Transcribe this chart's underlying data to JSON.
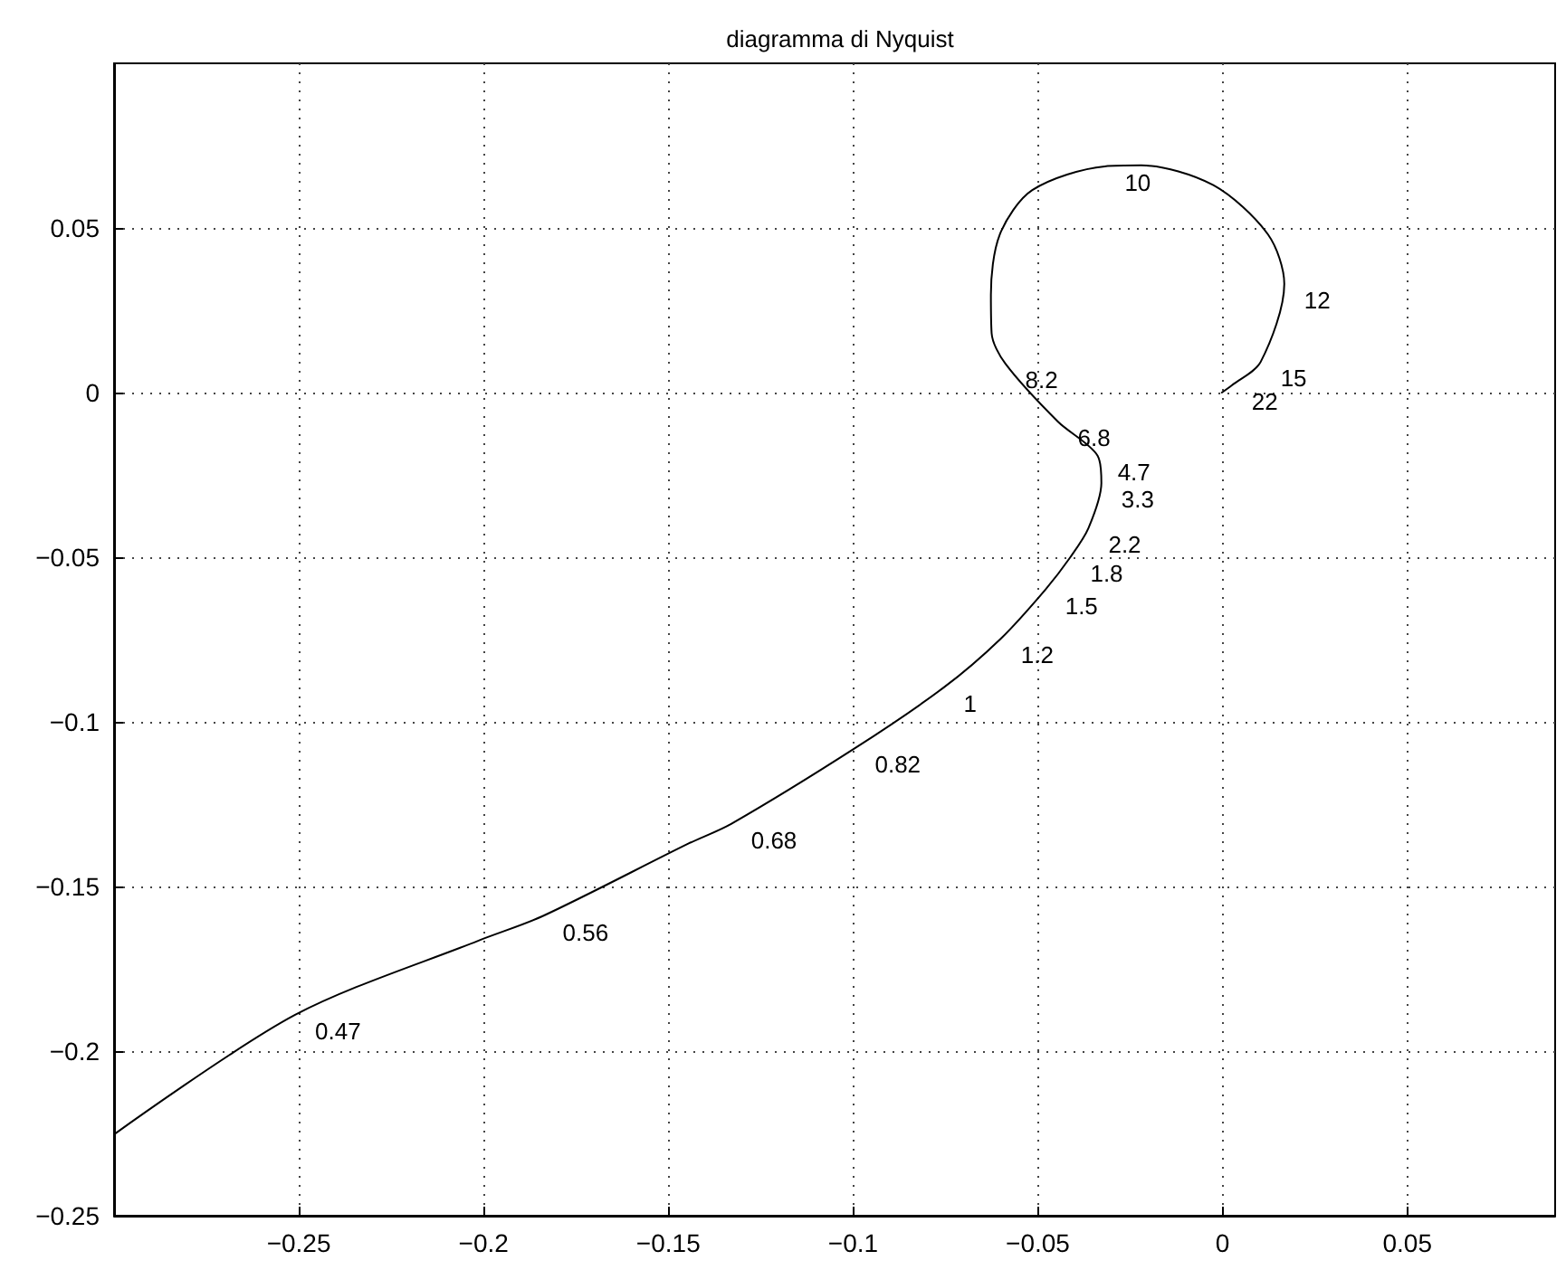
{
  "chart_data": {
    "type": "line",
    "title": "diagramma di Nyquist",
    "xlim": [
      -0.3,
      0.09
    ],
    "xticks": [
      -0.25,
      -0.2,
      -0.15,
      -0.1,
      -0.05,
      0,
      0.05
    ],
    "ylim": [
      -0.25,
      0.1
    ],
    "yticks": [
      -0.25,
      -0.2,
      -0.15,
      -0.1,
      -0.05,
      0,
      0.05
    ],
    "grid": true,
    "marker": "none",
    "line_style": "solid",
    "series": [
      {
        "color": "#000000",
        "x": [
          -0.3,
          -0.251,
          -0.2015,
          -0.184,
          -0.1446,
          -0.133,
          -0.0995,
          -0.0755,
          -0.06,
          -0.048,
          -0.0412,
          -0.0363,
          -0.0328,
          -0.0338,
          -0.0446,
          -0.0588,
          -0.0625,
          -0.0627,
          -0.0603,
          -0.0515,
          -0.0319,
          -0.022,
          -0.0025,
          0.0123,
          0.0167,
          0.0103,
          0.0025,
          -0.0002
        ],
        "values": [
          -0.2253,
          -0.189,
          -0.1665,
          -0.159,
          -0.137,
          -0.131,
          -0.108,
          -0.0896,
          -0.0747,
          -0.0599,
          -0.05,
          -0.0412,
          -0.0275,
          -0.0192,
          -0.0088,
          0.0088,
          0.018,
          0.0297,
          0.048,
          0.0615,
          0.0687,
          0.069,
          0.063,
          0.048,
          0.033,
          0.0093,
          0.0022,
          0
        ]
      }
    ],
    "annotations": [
      {
        "text": "0.47",
        "x": -0.251,
        "y": -0.189
      },
      {
        "text": "0.56",
        "x": -0.184,
        "y": -0.159
      },
      {
        "text": "0.68",
        "x": -0.133,
        "y": -0.131
      },
      {
        "text": "0.82",
        "x": -0.0995,
        "y": -0.108
      },
      {
        "text": "1",
        "x": -0.0755,
        "y": -0.0896
      },
      {
        "text": "1.2",
        "x": -0.06,
        "y": -0.0747
      },
      {
        "text": "1.5",
        "x": -0.048,
        "y": -0.0599
      },
      {
        "text": "1.8",
        "x": -0.0412,
        "y": -0.05
      },
      {
        "text": "2.2",
        "x": -0.0363,
        "y": -0.0412
      },
      {
        "text": "3.3",
        "x": -0.0328,
        "y": -0.0275
      },
      {
        "text": "4.7",
        "x": -0.0338,
        "y": -0.0192
      },
      {
        "text": "6.8",
        "x": -0.0446,
        "y": -0.0088
      },
      {
        "text": "8.2",
        "x": -0.0588,
        "y": 0.0088
      },
      {
        "text": "10",
        "x": -0.0319,
        "y": 0.0687
      },
      {
        "text": "12",
        "x": 0.0167,
        "y": 0.033
      },
      {
        "text": "15",
        "x": 0.0103,
        "y": 0.0093
      },
      {
        "text": "22",
        "x": 0.0025,
        "y": 0.0022
      }
    ]
  }
}
